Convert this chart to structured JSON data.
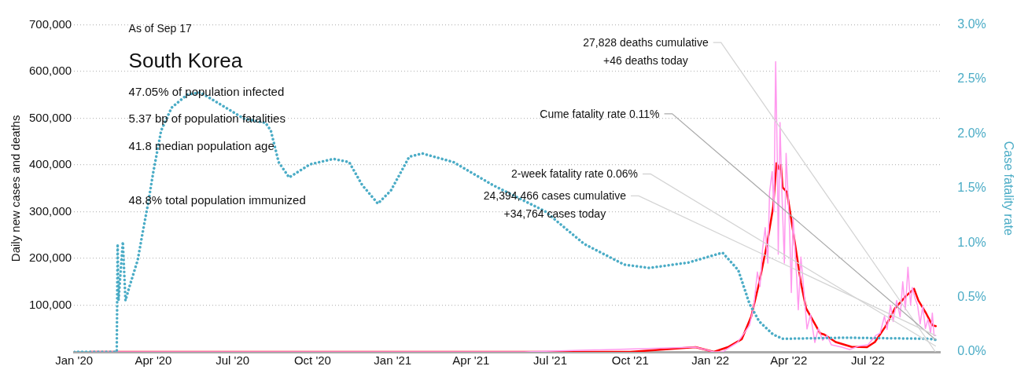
{
  "chart_data": {
    "type": "line",
    "title": "South Korea",
    "subtitle": "As of Sep 17",
    "ylabel": "Daily new cases and deaths",
    "y2label": "Case fatality rate",
    "xlim": [
      "2020-01-01",
      "2022-09-22"
    ],
    "xticks": [
      {
        "value": "2020-01-01",
        "label": "Jan '20"
      },
      {
        "value": "2020-04-01",
        "label": "Apr '20"
      },
      {
        "value": "2020-07-01",
        "label": "Jul '20"
      },
      {
        "value": "2020-10-01",
        "label": "Oct '20"
      },
      {
        "value": "2021-01-01",
        "label": "Jan '21"
      },
      {
        "value": "2021-04-01",
        "label": "Apr '21"
      },
      {
        "value": "2021-07-01",
        "label": "Jul '21"
      },
      {
        "value": "2021-10-01",
        "label": "Oct '21"
      },
      {
        "value": "2022-01-01",
        "label": "Jan '22"
      },
      {
        "value": "2022-04-01",
        "label": "Apr '22"
      },
      {
        "value": "2022-07-01",
        "label": "Jul '22"
      }
    ],
    "ylim": [
      0,
      700000
    ],
    "yticks": [
      {
        "value": 0,
        "label": null
      },
      {
        "value": 100000,
        "label": "100,000"
      },
      {
        "value": 200000,
        "label": "200,000"
      },
      {
        "value": 300000,
        "label": "300,000"
      },
      {
        "value": 400000,
        "label": "400,000"
      },
      {
        "value": 500000,
        "label": "500,000"
      },
      {
        "value": 600000,
        "label": "600,000"
      },
      {
        "value": 700000,
        "label": "700,000"
      }
    ],
    "y2lim": [
      0,
      3
    ],
    "y2ticks": [
      {
        "value": 0,
        "label": "0.0%"
      },
      {
        "value": 0.5,
        "label": "0.5%"
      },
      {
        "value": 1,
        "label": "1.0%"
      },
      {
        "value": 1.5,
        "label": "1.5%"
      },
      {
        "value": 2,
        "label": "2.0%"
      },
      {
        "value": 2.5,
        "label": "2.5%"
      },
      {
        "value": 3,
        "label": "3.0%"
      }
    ],
    "grid": "y",
    "legend": false,
    "marker": "none",
    "series": [
      {
        "color": "#ff99ee",
        "x": [
          "2020-01-20",
          "2021-06-01",
          "2021-12-15",
          "2022-01-05",
          "2022-01-15",
          "2022-02-01",
          "2022-02-08",
          "2022-02-15",
          "2022-02-20",
          "2022-02-24",
          "2022-02-27",
          "2022-03-02",
          "2022-03-05",
          "2022-03-08",
          "2022-03-10",
          "2022-03-13",
          "2022-03-15",
          "2022-03-17",
          "2022-03-19",
          "2022-03-20",
          "2022-03-22",
          "2022-03-24",
          "2022-03-27",
          "2022-03-29",
          "2022-04-02",
          "2022-04-04",
          "2022-04-06",
          "2022-04-10",
          "2022-04-12",
          "2022-04-15",
          "2022-04-19",
          "2022-04-22",
          "2022-04-26",
          "2022-05-01",
          "2022-05-05",
          "2022-05-10",
          "2022-05-15",
          "2022-05-20",
          "2022-06-01",
          "2022-06-10",
          "2022-06-20",
          "2022-07-01",
          "2022-07-10",
          "2022-07-15",
          "2022-07-20",
          "2022-07-23",
          "2022-07-27",
          "2022-07-30",
          "2022-08-03",
          "2022-08-07",
          "2022-08-10",
          "2022-08-13",
          "2022-08-16",
          "2022-08-19",
          "2022-08-21",
          "2022-08-24",
          "2022-08-27",
          "2022-08-30",
          "2022-09-02",
          "2022-09-05",
          "2022-09-08",
          "2022-09-11",
          "2022-09-13",
          "2022-09-15",
          "2022-09-17"
        ],
        "values": [
          0,
          0,
          10000,
          0,
          0,
          20000,
          38000,
          57000,
          100000,
          171000,
          140000,
          220000,
          266000,
          190000,
          342000,
          386000,
          300000,
          621000,
          400000,
          209000,
          491000,
          350000,
          190000,
          425000,
          264000,
          127000,
          286000,
          165000,
          90000,
          203000,
          118000,
          49000,
          80000,
          20000,
          50000,
          25000,
          35000,
          15000,
          10000,
          5000,
          12000,
          15000,
          35000,
          40000,
          76000,
          48000,
          100000,
          65000,
          110000,
          75000,
          150000,
          90000,
          181000,
          100000,
          138000,
          115000,
          100000,
          60000,
          98000,
          50000,
          70000,
          40000,
          83000,
          35000,
          34764
        ]
      },
      {
        "color": "#ff0000",
        "x": [
          "2020-01-20",
          "2021-01-01",
          "2021-07-15",
          "2021-10-01",
          "2021-12-15",
          "2022-01-05",
          "2022-01-21",
          "2022-02-06",
          "2022-02-17",
          "2022-02-26",
          "2022-03-07",
          "2022-03-14",
          "2022-03-18",
          "2022-03-21",
          "2022-03-23",
          "2022-03-25",
          "2022-03-30",
          "2022-04-06",
          "2022-04-15",
          "2022-04-21",
          "2022-05-07",
          "2022-05-12",
          "2022-05-25",
          "2022-06-12",
          "2022-06-30",
          "2022-07-09",
          "2022-07-21",
          "2022-08-01",
          "2022-08-14",
          "2022-08-23",
          "2022-08-28",
          "2022-09-06",
          "2022-09-13",
          "2022-09-17"
        ],
        "values": [
          0,
          0,
          0,
          0,
          10000,
          0,
          10000,
          27000,
          76000,
          147000,
          230000,
          308000,
          404000,
          391000,
          400000,
          352000,
          342000,
          259000,
          148000,
          93000,
          40000,
          37000,
          21000,
          11000,
          10000,
          21000,
          54000,
          93000,
          120000,
          135000,
          110000,
          82000,
          57000,
          55000
        ]
      },
      {
        "color": "#4bacc6",
        "axis": "y2",
        "line_style": "dotted",
        "x": [
          "2020-01-01",
          "2020-02-19",
          "2020-02-20",
          "2020-02-21",
          "2020-02-26",
          "2020-02-29",
          "2020-03-05",
          "2020-03-14",
          "2020-03-19",
          "2020-03-26",
          "2020-04-01",
          "2020-04-10",
          "2020-04-22",
          "2020-05-10",
          "2020-05-25",
          "2020-06-15",
          "2020-07-14",
          "2020-08-08",
          "2020-08-14",
          "2020-08-23",
          "2020-09-04",
          "2020-09-28",
          "2020-10-25",
          "2020-11-12",
          "2020-11-27",
          "2020-12-15",
          "2020-12-30",
          "2021-01-20",
          "2021-02-04",
          "2021-03-12",
          "2021-04-26",
          "2021-06-25",
          "2021-08-09",
          "2021-09-24",
          "2021-10-23",
          "2021-12-07",
          "2022-01-15",
          "2022-02-02",
          "2022-02-15",
          "2022-02-26",
          "2022-03-14",
          "2022-03-25",
          "2022-06-05",
          "2022-09-10",
          "2022-09-17"
        ],
        "values": [
          0,
          0,
          0.99,
          0.47,
          1.01,
          0.47,
          0.61,
          0.84,
          1.06,
          1.36,
          1.65,
          2.03,
          2.24,
          2.36,
          2.38,
          2.28,
          2.14,
          2.1,
          2.03,
          1.74,
          1.6,
          1.72,
          1.77,
          1.74,
          1.53,
          1.36,
          1.48,
          1.79,
          1.82,
          1.74,
          1.53,
          1.29,
          0.99,
          0.8,
          0.77,
          0.82,
          0.91,
          0.75,
          0.44,
          0.28,
          0.16,
          0.12,
          0.13,
          0.12,
          0.11
        ]
      }
    ],
    "annotations": [
      "47.05% of population infected",
      "5.37 bp of population fatalities",
      "41.8 median population age",
      "48.8% total population immunized",
      "27,828 deaths cumulative\n+46 deaths today",
      "Cume fatality rate 0.11%",
      "2-week fatality rate 0.06%",
      {
        "text": "24,394,466 cases cumulative\n+34,764 cases today",
        "x": "2022-09-17",
        "y": 34764
      }
    ]
  }
}
